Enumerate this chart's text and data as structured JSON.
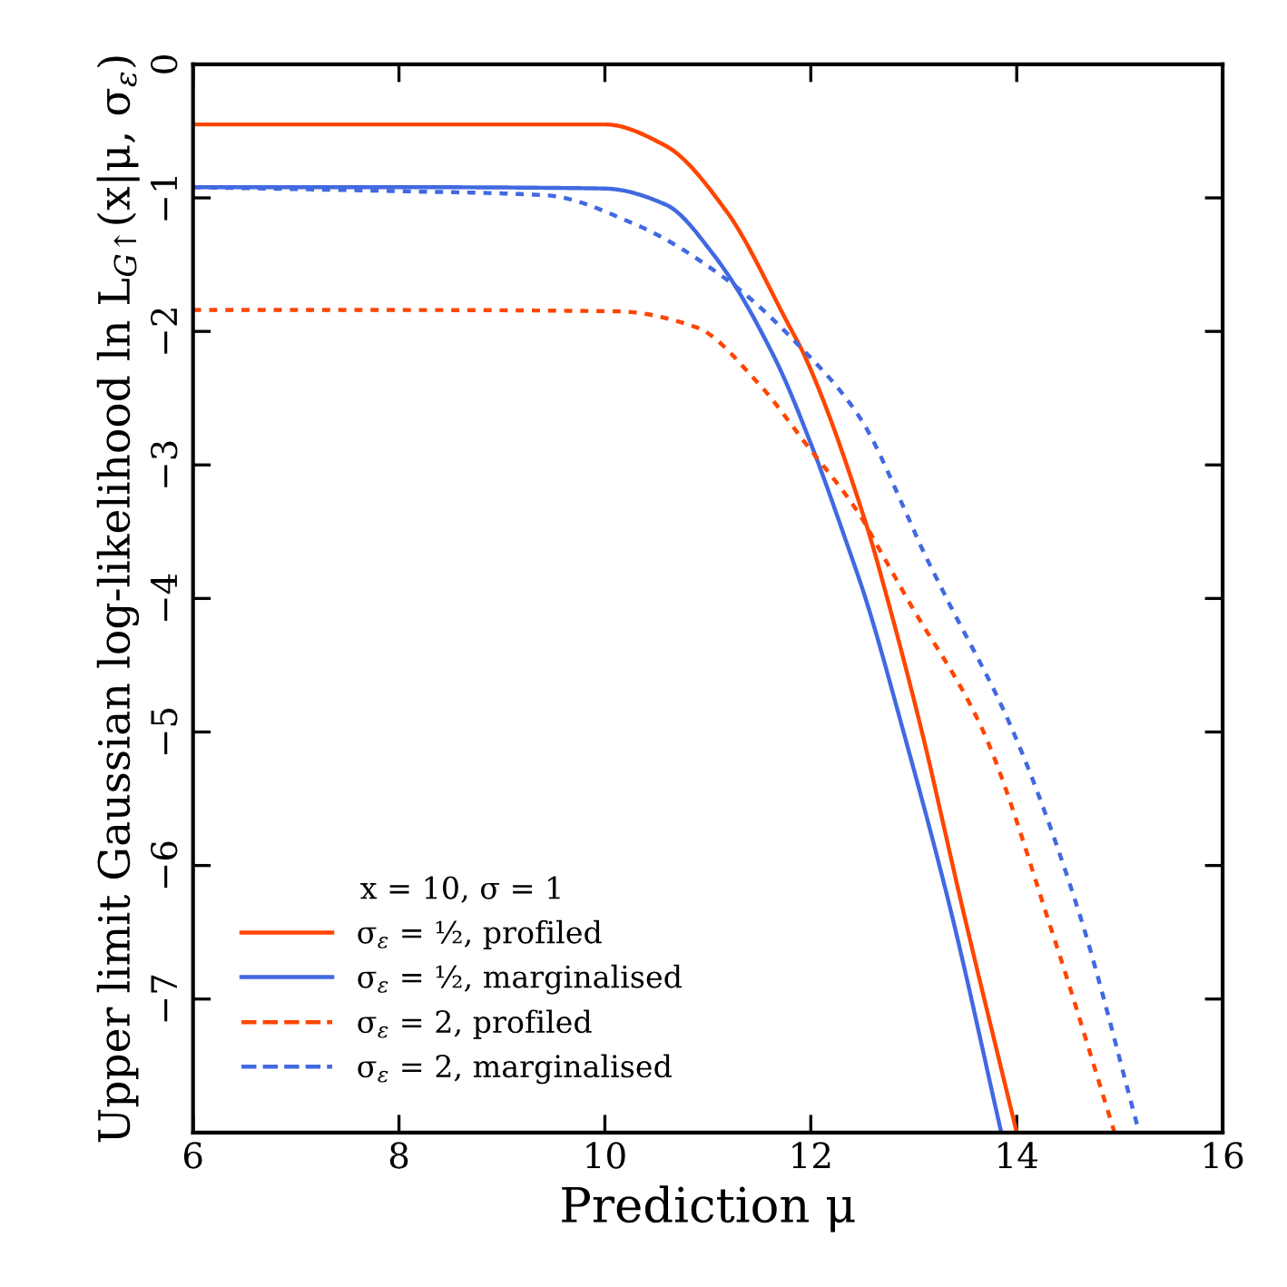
{
  "chart_data": {
    "type": "line",
    "xlabel": "Prediction μ",
    "ylabel": "Upper limit Gaussian log-likelihood ln L$_{G↑}$(x|μ, σ$_{ε}$)",
    "legend_title": "x = 10, σ = 1",
    "legend": "bottom left",
    "grid": false,
    "marker": "none",
    "xlim": [
      6,
      16
    ],
    "xticks": [
      6,
      8,
      10,
      12,
      14,
      16
    ],
    "ylim": [
      -8,
      0
    ],
    "yticks": [
      0,
      -1,
      -2,
      -3,
      -4,
      -5,
      -6,
      -7
    ],
    "series": [
      {
        "name": "σ$_{ε}$ = ½, profiled",
        "color": "#ff4500",
        "line_style": "solid",
        "x": [
          6,
          8,
          10,
          10.59,
          11.18,
          11.77,
          11.95,
          12.54,
          12.75,
          13.07,
          13.48,
          14.0
        ],
        "values": [
          -0.45,
          -0.45,
          -0.45,
          -0.61,
          -1.1,
          -1.93,
          -2.2,
          -3.45,
          -4.02,
          -4.97,
          -6.34,
          -8.0
        ]
      },
      {
        "name": "σ$_{ε}$ = ½, marginalised",
        "color": "#4169e1",
        "line_style": "solid",
        "x": [
          6,
          8,
          10,
          10.59,
          11.06,
          11.65,
          12.0,
          12.36,
          12.54,
          12.89,
          13.36,
          13.85
        ],
        "values": [
          -0.92,
          -0.92,
          -0.93,
          -1.05,
          -1.43,
          -2.2,
          -2.84,
          -3.61,
          -4.02,
          -4.97,
          -6.34,
          -8.0
        ]
      },
      {
        "name": "σ$_{ε}$ = 2, profiled",
        "color": "#ff4500",
        "line_style": "dotted",
        "x": [
          6,
          8,
          10.13,
          10.89,
          11.48,
          11.95,
          12.48,
          12.65,
          12.95,
          13.66,
          14.37,
          14.95
        ],
        "values": [
          -1.84,
          -1.84,
          -1.85,
          -1.97,
          -2.38,
          -2.84,
          -3.38,
          -3.61,
          -4.02,
          -4.97,
          -6.56,
          -8.0
        ]
      },
      {
        "name": "σ$_{ε}$ = 2, marginalised",
        "color": "#4169e1",
        "line_style": "dotted",
        "x": [
          6,
          8,
          9.42,
          10.3,
          11.18,
          11.89,
          12.48,
          12.95,
          13.07,
          13.3,
          13.95,
          14.6,
          15.19
        ],
        "values": [
          -0.92,
          -0.95,
          -0.98,
          -1.2,
          -1.61,
          -2.11,
          -2.65,
          -3.4,
          -3.61,
          -3.97,
          -4.97,
          -6.34,
          -8.0
        ]
      }
    ]
  }
}
